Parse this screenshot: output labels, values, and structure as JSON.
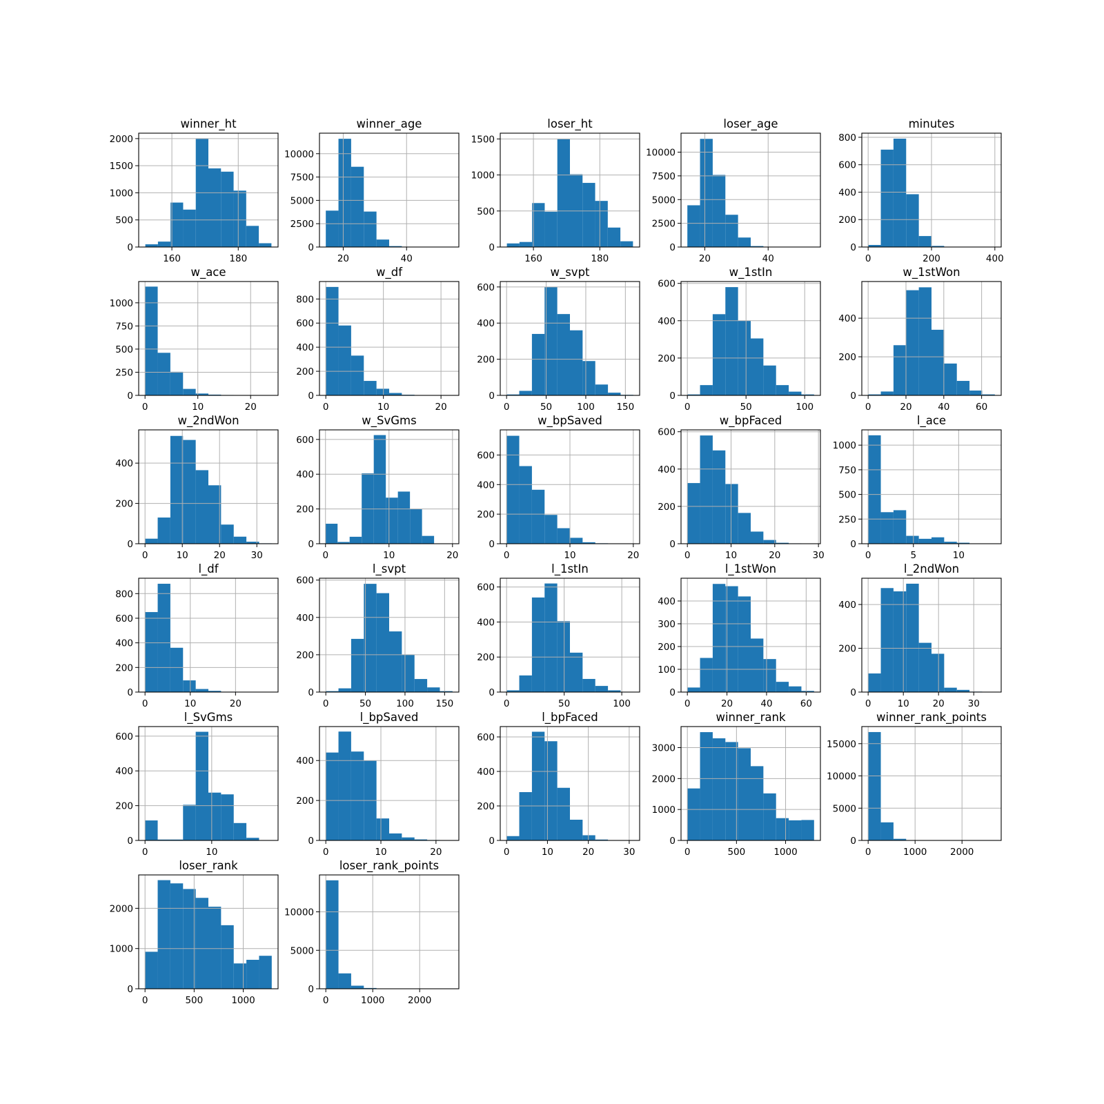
{
  "chart_data": [
    {
      "type": "bar",
      "title": "winner_ht",
      "bins": {
        "min": 152,
        "max": 190,
        "count": 10
      },
      "values": [
        50,
        100,
        820,
        690,
        2000,
        1450,
        1390,
        1040,
        390,
        70
      ],
      "xticks": [
        160,
        180
      ],
      "yticks": [
        0,
        500,
        1000,
        1500,
        2000
      ],
      "xlim": [
        150,
        192
      ],
      "ylim": [
        0,
        2100
      ]
    },
    {
      "type": "bar",
      "title": "winner_age",
      "bins": {
        "min": 14.5,
        "max": 54.5,
        "count": 10
      },
      "values": [
        3900,
        11600,
        8600,
        3800,
        800,
        100,
        20,
        10,
        5,
        2
      ],
      "xticks": [
        20,
        40
      ],
      "yticks": [
        0,
        2500,
        5000,
        7500,
        10000
      ],
      "xlim": [
        12.5,
        56.5
      ],
      "ylim": [
        0,
        12200
      ]
    },
    {
      "type": "bar",
      "title": "loser_ht",
      "bins": {
        "min": 152,
        "max": 190,
        "count": 10
      },
      "values": [
        50,
        70,
        610,
        490,
        1500,
        1010,
        890,
        640,
        270,
        80
      ],
      "xticks": [
        160,
        180
      ],
      "yticks": [
        0,
        500,
        1000,
        1500
      ],
      "xlim": [
        150,
        192
      ],
      "ylim": [
        0,
        1580
      ]
    },
    {
      "type": "bar",
      "title": "loser_age",
      "bins": {
        "min": 14.5,
        "max": 54.5,
        "count": 10
      },
      "values": [
        4400,
        11400,
        7600,
        3400,
        1000,
        100,
        20,
        10,
        5,
        2
      ],
      "xticks": [
        20,
        40
      ],
      "yticks": [
        0,
        2500,
        5000,
        7500,
        10000
      ],
      "xlim": [
        12.5,
        56.5
      ],
      "ylim": [
        0,
        12000
      ]
    },
    {
      "type": "bar",
      "title": "minutes",
      "bins": {
        "min": 0,
        "max": 400,
        "count": 10
      },
      "values": [
        15,
        710,
        790,
        385,
        80,
        8,
        2,
        1,
        1,
        1
      ],
      "xticks": [
        0,
        200,
        400
      ],
      "yticks": [
        0,
        200,
        400,
        600,
        800
      ],
      "xlim": [
        -20,
        420
      ],
      "ylim": [
        0,
        830
      ]
    },
    {
      "type": "bar",
      "title": "w_ace",
      "bins": {
        "min": 0,
        "max": 24,
        "count": 10
      },
      "values": [
        1175,
        460,
        255,
        70,
        20,
        8,
        4,
        2,
        1,
        1
      ],
      "xticks": [
        0,
        10,
        20
      ],
      "yticks": [
        0,
        250,
        500,
        750,
        1000
      ],
      "xlim": [
        -1.2,
        25.2
      ],
      "ylim": [
        0,
        1230
      ]
    },
    {
      "type": "bar",
      "title": "w_df",
      "bins": {
        "min": 0,
        "max": 22,
        "count": 10
      },
      "values": [
        900,
        580,
        330,
        120,
        55,
        20,
        5,
        2,
        1,
        1
      ],
      "xticks": [
        0,
        10,
        20
      ],
      "yticks": [
        0,
        200,
        400,
        600,
        800
      ],
      "xlim": [
        -1.1,
        23.1
      ],
      "ylim": [
        0,
        945
      ]
    },
    {
      "type": "bar",
      "title": "w_svpt",
      "bins": {
        "min": 0,
        "max": 160,
        "count": 10
      },
      "values": [
        5,
        25,
        340,
        600,
        450,
        360,
        190,
        60,
        15,
        3
      ],
      "xticks": [
        0,
        50,
        100,
        150
      ],
      "yticks": [
        0,
        200,
        400,
        600
      ],
      "xlim": [
        -8,
        168
      ],
      "ylim": [
        0,
        630
      ]
    },
    {
      "type": "bar",
      "title": "w_1stIn",
      "bins": {
        "min": 0,
        "max": 108,
        "count": 10
      },
      "values": [
        5,
        55,
        435,
        580,
        400,
        305,
        160,
        55,
        20,
        5
      ],
      "xticks": [
        0,
        50,
        100
      ],
      "yticks": [
        0,
        200,
        400,
        600
      ],
      "xlim": [
        -5.4,
        113.4
      ],
      "ylim": [
        0,
        610
      ]
    },
    {
      "type": "bar",
      "title": "w_1stWon",
      "bins": {
        "min": 0,
        "max": 67,
        "count": 10
      },
      "values": [
        5,
        20,
        260,
        545,
        560,
        340,
        165,
        75,
        25,
        5
      ],
      "xticks": [
        0,
        20,
        40,
        60
      ],
      "yticks": [
        0,
        200,
        400
      ],
      "xlim": [
        -3.35,
        70.35
      ],
      "ylim": [
        0,
        590
      ]
    },
    {
      "type": "bar",
      "title": "w_2ndWon",
      "bins": {
        "min": 0,
        "max": 34,
        "count": 10
      },
      "values": [
        25,
        130,
        535,
        515,
        365,
        290,
        95,
        35,
        10,
        2
      ],
      "xticks": [
        0,
        10,
        20,
        30
      ],
      "yticks": [
        0,
        200,
        400
      ],
      "xlim": [
        -1.7,
        35.7
      ],
      "ylim": [
        0,
        565
      ]
    },
    {
      "type": "bar",
      "title": "w_SvGms",
      "bins": {
        "min": 0,
        "max": 19,
        "count": 10
      },
      "values": [
        115,
        10,
        40,
        405,
        625,
        265,
        300,
        200,
        45,
        0
      ],
      "xticks": [
        0,
        10,
        20
      ],
      "yticks": [
        0,
        200,
        400,
        600
      ],
      "xlim": [
        -0.95,
        21
      ],
      "ylim": [
        0,
        655
      ]
    },
    {
      "type": "bar",
      "title": "w_bpSaved",
      "bins": {
        "min": 0,
        "max": 20,
        "count": 10
      },
      "values": [
        730,
        525,
        365,
        195,
        105,
        40,
        10,
        3,
        1,
        1
      ],
      "xticks": [
        0,
        10,
        20
      ],
      "yticks": [
        0,
        200,
        400,
        600
      ],
      "xlim": [
        -1,
        21
      ],
      "ylim": [
        0,
        770
      ]
    },
    {
      "type": "bar",
      "title": "w_bpFaced",
      "bins": {
        "min": 0,
        "max": 29,
        "count": 10
      },
      "values": [
        325,
        580,
        500,
        320,
        165,
        65,
        20,
        5,
        2,
        1
      ],
      "xticks": [
        0,
        10,
        20,
        30
      ],
      "yticks": [
        0,
        200,
        400,
        600
      ],
      "xlim": [
        -1.45,
        30.45
      ],
      "ylim": [
        0,
        610
      ]
    },
    {
      "type": "bar",
      "title": "l_ace",
      "bins": {
        "min": 0,
        "max": 14,
        "count": 10
      },
      "values": [
        1100,
        320,
        340,
        80,
        50,
        65,
        20,
        10,
        2,
        1
      ],
      "xticks": [
        0,
        5,
        10
      ],
      "yticks": [
        0,
        250,
        500,
        750,
        1000
      ],
      "xlim": [
        -0.7,
        14.7
      ],
      "ylim": [
        0,
        1155
      ]
    },
    {
      "type": "bar",
      "title": "l_df",
      "bins": {
        "min": 0,
        "max": 28,
        "count": 10
      },
      "values": [
        650,
        880,
        360,
        95,
        25,
        10,
        3,
        1,
        1,
        1
      ],
      "xticks": [
        0,
        10,
        20
      ],
      "yticks": [
        0,
        200,
        400,
        600,
        800
      ],
      "xlim": [
        -1.4,
        29.4
      ],
      "ylim": [
        0,
        925
      ]
    },
    {
      "type": "bar",
      "title": "l_svpt",
      "bins": {
        "min": 0,
        "max": 160,
        "count": 10
      },
      "values": [
        5,
        20,
        285,
        580,
        530,
        325,
        200,
        70,
        25,
        5
      ],
      "xticks": [
        0,
        50,
        100,
        150
      ],
      "yticks": [
        0,
        200,
        400,
        600
      ],
      "xlim": [
        -8,
        168
      ],
      "ylim": [
        0,
        610
      ]
    },
    {
      "type": "bar",
      "title": "l_1stIn",
      "bins": {
        "min": 0,
        "max": 110,
        "count": 10
      },
      "values": [
        10,
        95,
        540,
        620,
        405,
        225,
        75,
        35,
        10,
        2
      ],
      "xticks": [
        0,
        50,
        100
      ],
      "yticks": [
        0,
        200,
        400,
        600
      ],
      "xlim": [
        -5.5,
        115.5
      ],
      "ylim": [
        0,
        650
      ]
    },
    {
      "type": "bar",
      "title": "l_1stWon",
      "bins": {
        "min": 0,
        "max": 64,
        "count": 10
      },
      "values": [
        20,
        150,
        475,
        465,
        420,
        235,
        145,
        45,
        25,
        5
      ],
      "xticks": [
        0,
        20,
        40,
        60
      ],
      "yticks": [
        0,
        100,
        200,
        300,
        400
      ],
      "xlim": [
        -3.2,
        67.2
      ],
      "ylim": [
        0,
        500
      ]
    },
    {
      "type": "bar",
      "title": "l_2ndWon",
      "bins": {
        "min": 0,
        "max": 36,
        "count": 10
      },
      "values": [
        85,
        475,
        460,
        495,
        225,
        175,
        20,
        10,
        2,
        1
      ],
      "xticks": [
        0,
        10,
        20,
        30
      ],
      "yticks": [
        0,
        200,
        400
      ],
      "xlim": [
        -1.8,
        37.8
      ],
      "ylim": [
        0,
        520
      ]
    },
    {
      "type": "bar",
      "title": "l_SvGms",
      "bins": {
        "min": 0,
        "max": 19,
        "count": 10
      },
      "values": [
        115,
        5,
        5,
        205,
        625,
        275,
        265,
        100,
        15,
        0
      ],
      "xticks": [
        0,
        10
      ],
      "yticks": [
        0,
        200,
        400,
        600
      ],
      "xlim": [
        -0.95,
        19.95
      ],
      "ylim": [
        0,
        655
      ]
    },
    {
      "type": "bar",
      "title": "l_bpSaved",
      "bins": {
        "min": 0,
        "max": 23,
        "count": 10
      },
      "values": [
        440,
        545,
        445,
        400,
        110,
        35,
        15,
        5,
        2,
        1
      ],
      "xticks": [
        0,
        10,
        20
      ],
      "yticks": [
        0,
        200,
        400
      ],
      "xlim": [
        -1.15,
        24.15
      ],
      "ylim": [
        0,
        570
      ]
    },
    {
      "type": "bar",
      "title": "l_bpFaced",
      "bins": {
        "min": 0,
        "max": 31,
        "count": 10
      },
      "values": [
        25,
        280,
        630,
        575,
        305,
        120,
        30,
        5,
        2,
        1
      ],
      "xticks": [
        0,
        10,
        20,
        30
      ],
      "yticks": [
        0,
        200,
        400,
        600
      ],
      "xlim": [
        -1.55,
        32.55
      ],
      "ylim": [
        0,
        660
      ]
    },
    {
      "type": "bar",
      "title": "winner_rank",
      "bins": {
        "min": 0,
        "max": 1290,
        "count": 10
      },
      "values": [
        1680,
        3500,
        3300,
        3180,
        2980,
        2400,
        1520,
        720,
        650,
        660
      ],
      "xticks": [
        0,
        500,
        1000
      ],
      "yticks": [
        0,
        1000,
        2000,
        3000
      ],
      "xlim": [
        -64.5,
        1354.5
      ],
      "ylim": [
        0,
        3680
      ]
    },
    {
      "type": "bar",
      "title": "winner_rank_points",
      "bins": {
        "min": 0,
        "max": 2700,
        "count": 10
      },
      "values": [
        16800,
        2800,
        250,
        50,
        20,
        10,
        5,
        5,
        2,
        2
      ],
      "xticks": [
        0,
        1000,
        2000
      ],
      "yticks": [
        0,
        5000,
        10000,
        15000
      ],
      "xlim": [
        -135,
        2835
      ],
      "ylim": [
        0,
        17650
      ]
    },
    {
      "type": "bar",
      "title": "loser_rank",
      "bins": {
        "min": 0,
        "max": 1290,
        "count": 10
      },
      "values": [
        920,
        2700,
        2620,
        2480,
        2260,
        2040,
        1580,
        630,
        720,
        820
      ],
      "xticks": [
        0,
        500,
        1000
      ],
      "yticks": [
        0,
        1000,
        2000
      ],
      "xlim": [
        -64.5,
        1354.5
      ],
      "ylim": [
        0,
        2830
      ]
    },
    {
      "type": "bar",
      "title": "loser_rank_points",
      "bins": {
        "min": 0,
        "max": 2700,
        "count": 10
      },
      "values": [
        14100,
        2000,
        400,
        100,
        20,
        10,
        5,
        5,
        2,
        2
      ],
      "xticks": [
        0,
        1000,
        2000
      ],
      "yticks": [
        0,
        5000,
        10000
      ],
      "xlim": [
        -135,
        2835
      ],
      "ylim": [
        0,
        14800
      ]
    }
  ],
  "colors": {
    "bar": "#1f77b4",
    "grid": "#b0b0b0",
    "axis": "#000000"
  },
  "grid": true
}
